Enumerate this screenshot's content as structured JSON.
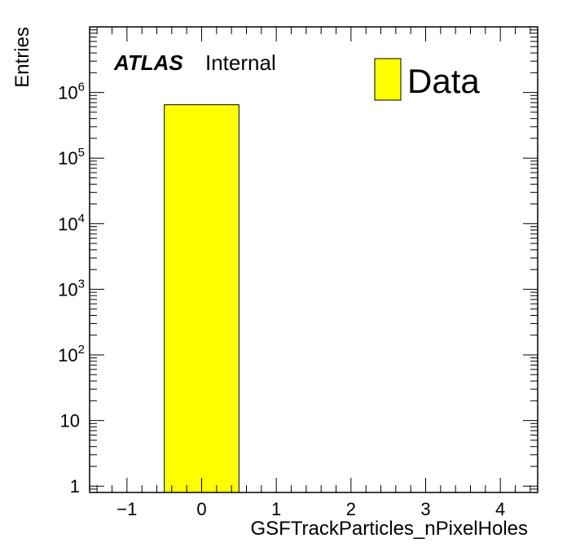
{
  "chart_data": {
    "type": "bar",
    "title": "",
    "xlabel": "GSFTrackParticles_nPixelHoles",
    "ylabel": "Entries",
    "xlim": [
      -1.5,
      4.5
    ],
    "ylim": [
      0.8,
      10000000
    ],
    "yscale": "log",
    "grid": false,
    "bin_width": 1,
    "bins": [
      {
        "x": 0,
        "value": 650000
      }
    ],
    "series": [
      {
        "name": "Data",
        "color": "#ffff00"
      }
    ],
    "x_ticks": [
      {
        "value": -1,
        "label": "−1"
      },
      {
        "value": 0,
        "label": "0"
      },
      {
        "value": 1,
        "label": "1"
      },
      {
        "value": 2,
        "label": "2"
      },
      {
        "value": 3,
        "label": "3"
      },
      {
        "value": 4,
        "label": "4"
      }
    ],
    "y_ticks": [
      {
        "value": 1,
        "base": "1",
        "exp": ""
      },
      {
        "value": 10,
        "base": "10",
        "exp": ""
      },
      {
        "value": 100,
        "base": "10",
        "exp": "2"
      },
      {
        "value": 1000,
        "base": "10",
        "exp": "3"
      },
      {
        "value": 10000,
        "base": "10",
        "exp": "4"
      },
      {
        "value": 100000,
        "base": "10",
        "exp": "5"
      },
      {
        "value": 1000000,
        "base": "10",
        "exp": "6"
      }
    ],
    "legend": {
      "position": "top-right",
      "label": "Data"
    },
    "annotations": {
      "experiment": "ATLAS",
      "status": "Internal"
    }
  }
}
